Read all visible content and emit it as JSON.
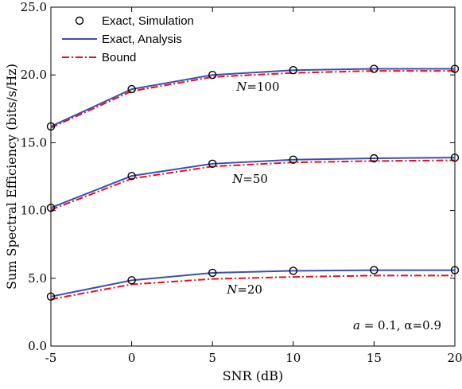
{
  "chart_data": {
    "type": "line",
    "xlabel": "SNR (dB)",
    "ylabel": "Sum Spectral Efficiency (bits/s/Hz)",
    "x": [
      -5,
      0,
      5,
      10,
      15,
      20
    ],
    "x_ticks": [
      "-5",
      "0",
      "5",
      "10",
      "15",
      "20"
    ],
    "y_ticks": [
      "0.0",
      "5.0",
      "10.0",
      "15.0",
      "20.0",
      "25.0"
    ],
    "xlim": [
      -5,
      20
    ],
    "ylim": [
      0,
      25
    ],
    "grid": false,
    "legend_position": "top-left",
    "legend": [
      {
        "label": "Exact, Simulation",
        "style": "marker",
        "color": "#000000"
      },
      {
        "label": "Exact, Analysis",
        "style": "solid",
        "color": "#3b4fb0"
      },
      {
        "label": "Bound",
        "style": "dashdot",
        "color": "#e8101a"
      }
    ],
    "groups": [
      {
        "label": "N=100",
        "label_name": "N",
        "label_value": "=100",
        "simulation": [
          16.2,
          18.95,
          20.0,
          20.35,
          20.45,
          20.45
        ],
        "analysis": [
          16.2,
          18.95,
          20.0,
          20.35,
          20.45,
          20.45
        ],
        "bound": [
          16.1,
          18.8,
          19.85,
          20.15,
          20.3,
          20.3
        ]
      },
      {
        "label": "N=50",
        "label_name": "N",
        "label_value": "=50",
        "simulation": [
          10.2,
          12.55,
          13.45,
          13.75,
          13.85,
          13.9
        ],
        "analysis": [
          10.2,
          12.55,
          13.45,
          13.75,
          13.85,
          13.9
        ],
        "bound": [
          10.05,
          12.35,
          13.25,
          13.55,
          13.65,
          13.7
        ]
      },
      {
        "label": "N=20",
        "label_name": "N",
        "label_value": "=20",
        "simulation": [
          3.65,
          4.85,
          5.4,
          5.55,
          5.6,
          5.6
        ],
        "analysis": [
          3.65,
          4.85,
          5.4,
          5.55,
          5.6,
          5.6
        ],
        "bound": [
          3.45,
          4.55,
          4.95,
          5.1,
          5.2,
          5.2
        ]
      }
    ],
    "annotation": {
      "a_symbol": "a",
      "a_value": " = 0.1, ",
      "alpha_symbol": "α",
      "alpha_value": "=0.9"
    },
    "colors": {
      "analysis": "#3b4fb0",
      "bound": "#e8101a",
      "marker": "#000000"
    }
  }
}
